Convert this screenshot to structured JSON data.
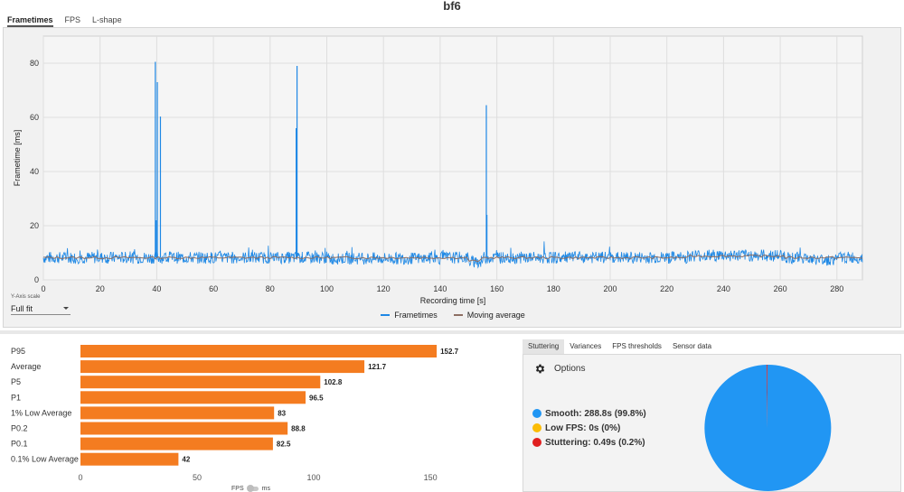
{
  "window": {
    "title": "bf6"
  },
  "tabs": [
    {
      "label": "Frametimes",
      "active": true
    },
    {
      "label": "FPS",
      "active": false
    },
    {
      "label": "L-shape",
      "active": false
    }
  ],
  "frametime_chart": {
    "type": "line",
    "xlabel": "Recording time [s]",
    "ylabel": "Frametime [ms]",
    "xlim": [
      0,
      289
    ],
    "ylim": [
      0,
      90
    ],
    "x_ticks": [
      0,
      20,
      40,
      60,
      80,
      100,
      120,
      140,
      160,
      180,
      200,
      220,
      240,
      260,
      280
    ],
    "y_ticks": [
      0,
      20,
      40,
      60,
      80
    ],
    "grid": true,
    "legend_position": "bottom-center",
    "series": [
      {
        "name": "Frametimes",
        "color": "#1e88e5"
      },
      {
        "name": "Moving average",
        "color": "#8d6e63"
      }
    ],
    "baseline_ms": 8.2,
    "spikes": [
      {
        "x": 39.5,
        "y": 80.5
      },
      {
        "x": 39.8,
        "y": 22
      },
      {
        "x": 40.2,
        "y": 73
      },
      {
        "x": 41.3,
        "y": 60.3
      },
      {
        "x": 89.5,
        "y": 79
      },
      {
        "x": 89.2,
        "y": 56
      },
      {
        "x": 156.3,
        "y": 64.5
      },
      {
        "x": 156.5,
        "y": 24
      }
    ]
  },
  "yaxis_scale": {
    "label": "Y-Axis scale",
    "value": "Full fit"
  },
  "fps_metrics": {
    "type": "bar",
    "orientation": "horizontal",
    "xlabel": "FPS",
    "xlim": [
      0,
      155
    ],
    "x_ticks": [
      0,
      50,
      100,
      150
    ],
    "color": "#f47c20",
    "categories": [
      "P95",
      "Average",
      "P5",
      "P1",
      "1% Low Average",
      "P0.2",
      "P0.1",
      "0.1% Low Average"
    ],
    "values": [
      152.7,
      121.7,
      102.8,
      96.5,
      83,
      88.8,
      82.5,
      42
    ],
    "value_labels": [
      "152.7",
      "121.7",
      "102.8",
      "96.5",
      "83",
      "88.8",
      "82.5",
      "42"
    ]
  },
  "unit_toggle": {
    "left": "FPS",
    "right": "ms"
  },
  "analysis_tabs": [
    {
      "label": "Stuttering",
      "active": true
    },
    {
      "label": "Variances",
      "active": false
    },
    {
      "label": "FPS thresholds",
      "active": false
    },
    {
      "label": "Sensor data",
      "active": false
    }
  ],
  "options_label": "Options",
  "stuttering": [
    {
      "label": "Smooth:  288.8s (99.8%)",
      "color": "#2196f3",
      "fraction": 0.998
    },
    {
      "label": "Low FPS:  0s (0%)",
      "color": "#fbbc05",
      "fraction": 0.0
    },
    {
      "label": "Stuttering:  0.49s (0.2%)",
      "color": "#e01f1f",
      "fraction": 0.002
    }
  ]
}
